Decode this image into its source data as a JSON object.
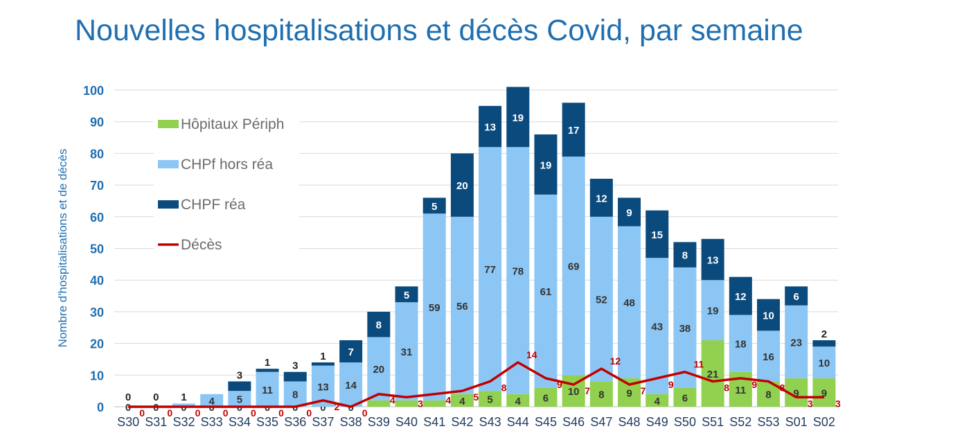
{
  "chart_data": {
    "type": "bar",
    "stacked": true,
    "title": "Nouvelles hospitalisations et décès Covid, par semaine",
    "xlabel": "",
    "ylabel": "Nombre d'hospitalisations et de décès",
    "ylim": [
      0,
      100
    ],
    "yticks": [
      0,
      10,
      20,
      30,
      40,
      50,
      60,
      70,
      80,
      90,
      100
    ],
    "grid": true,
    "legend_position": "top-left",
    "categories": [
      "S30",
      "S31",
      "S32",
      "S33",
      "S34",
      "S35",
      "S36",
      "S37",
      "S38",
      "S39",
      "S40",
      "S41",
      "S42",
      "S43",
      "S44",
      "S45",
      "S46",
      "S47",
      "S48",
      "S49",
      "S50",
      "S51",
      "S52",
      "S53",
      "S01",
      "S02"
    ],
    "series": [
      {
        "name": "Hôpitaux Périph",
        "type": "bar",
        "color": "#92d050",
        "values": [
          0,
          0,
          0,
          0,
          0,
          0,
          0,
          0,
          0,
          2,
          2,
          2,
          4,
          5,
          4,
          6,
          10,
          8,
          9,
          4,
          6,
          21,
          11,
          8,
          9,
          9
        ]
      },
      {
        "name": "CHPf hors réa",
        "type": "bar",
        "color": "#8cc6f4",
        "values": [
          0,
          0,
          1,
          4,
          5,
          11,
          8,
          13,
          14,
          20,
          31,
          59,
          56,
          77,
          78,
          61,
          69,
          52,
          48,
          43,
          38,
          19,
          18,
          16,
          23,
          10
        ]
      },
      {
        "name": "CHPF réa",
        "type": "bar",
        "color": "#0b4a7d",
        "values": [
          0,
          0,
          0,
          0,
          3,
          1,
          3,
          1,
          7,
          8,
          5,
          5,
          20,
          13,
          19,
          19,
          17,
          12,
          9,
          15,
          8,
          13,
          12,
          10,
          6,
          2
        ]
      },
      {
        "name": "Décès",
        "type": "line",
        "color": "#c00000",
        "values": [
          0,
          0,
          0,
          0,
          0,
          0,
          0,
          2,
          0,
          4,
          3,
          4,
          5,
          8,
          14,
          9,
          7,
          12,
          7,
          9,
          11,
          8,
          9,
          8,
          3,
          3
        ]
      }
    ]
  }
}
